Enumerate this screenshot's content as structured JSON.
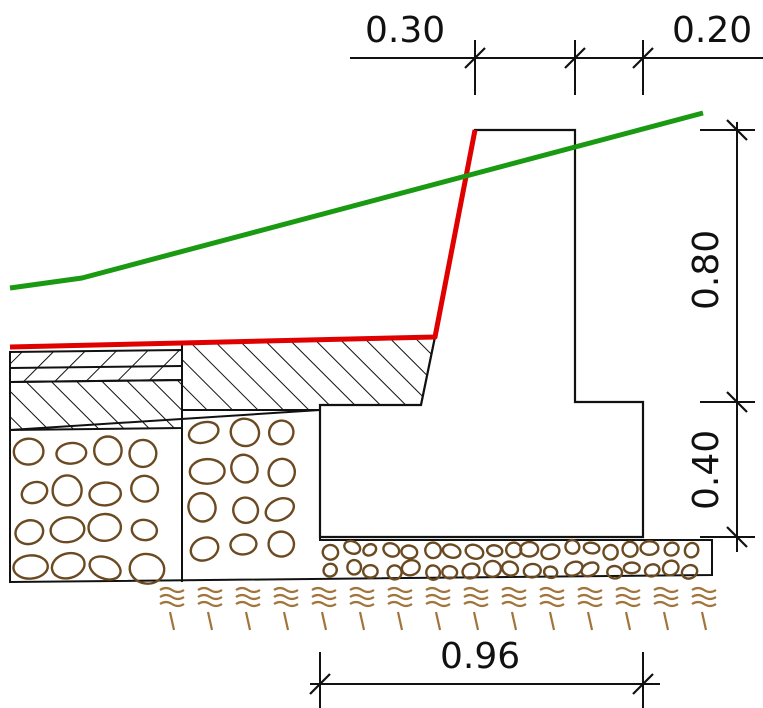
{
  "drawing": {
    "dimensions": {
      "top_left": "0.30",
      "top_right": "0.20",
      "right_upper": "0.80",
      "right_lower": "0.40",
      "bottom": "0.96"
    },
    "colors": {
      "terrain_line": "#1a9a12",
      "excavation_line": "#e00000",
      "outline": "#111111",
      "gravel": "#6b4a22",
      "soil_hatch": "#a0743a"
    }
  }
}
